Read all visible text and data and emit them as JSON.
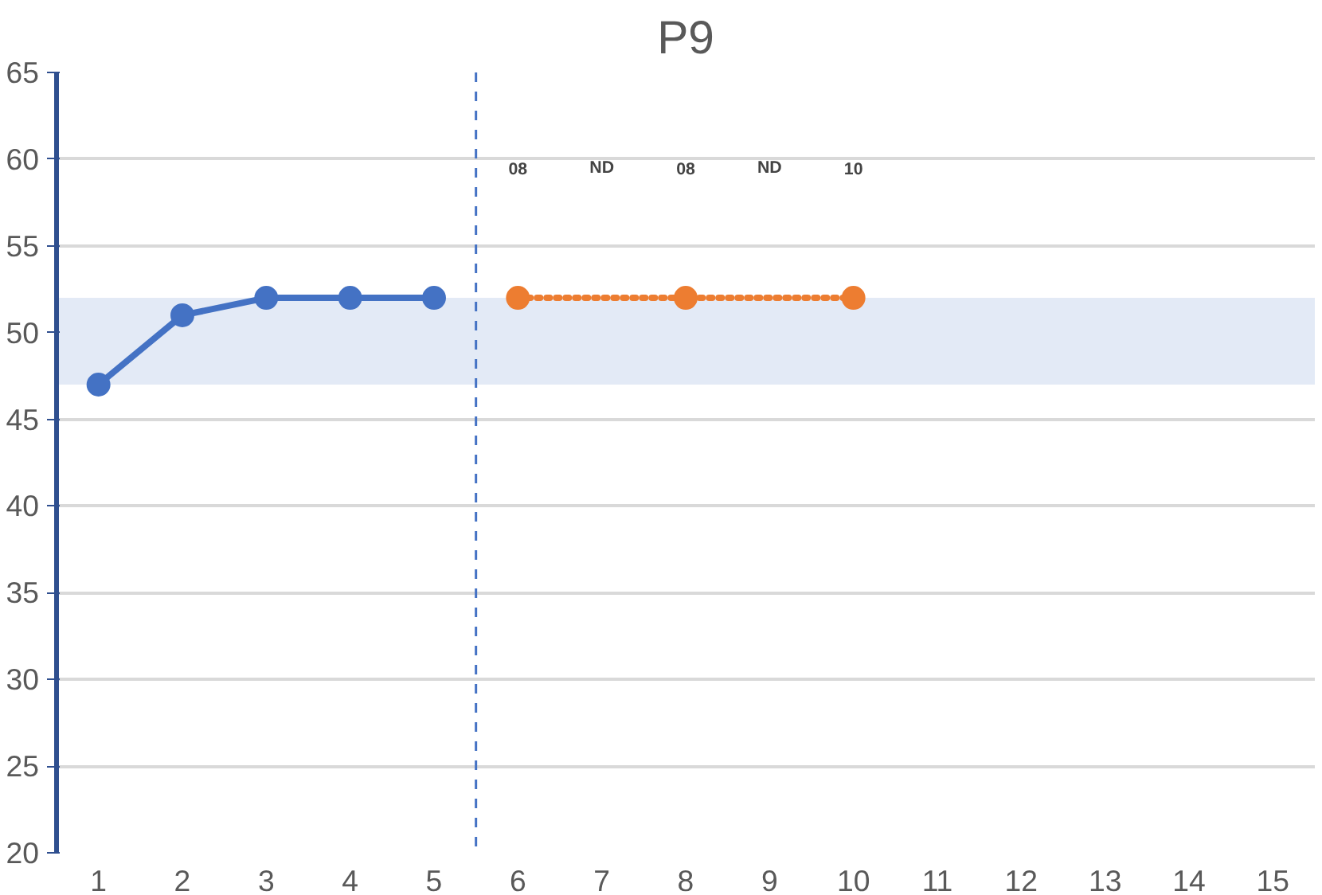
{
  "chart_data": {
    "type": "line",
    "title": "P9",
    "xlim": [
      0.5,
      15.5
    ],
    "xticks": [
      1,
      2,
      3,
      4,
      5,
      6,
      7,
      8,
      9,
      10,
      11,
      12,
      13,
      14,
      15
    ],
    "ylim": [
      20,
      65
    ],
    "yticks": [
      20,
      25,
      30,
      35,
      40,
      45,
      50,
      55,
      60,
      65
    ],
    "series": [
      {
        "color": "#4472c4",
        "x": [
          1,
          2,
          3,
          4,
          5
        ],
        "values": [
          47,
          51,
          52,
          52,
          52
        ],
        "line_style": "solid"
      },
      {
        "color": "#ed7d31",
        "x": [
          6,
          8,
          10
        ],
        "values": [
          52,
          52,
          52
        ],
        "line_style": "dotted"
      }
    ],
    "marker": "circle",
    "grid": "y",
    "bands": [
      {
        "axis": "y",
        "from": 47,
        "to": 52,
        "color": "#e3eaf6"
      }
    ],
    "ref_lines": [
      {
        "axis": "x",
        "value": 5.5,
        "color": "#4472c4",
        "line_style": "dashed"
      }
    ],
    "annotations": [
      "08",
      "ND",
      "08",
      "ND",
      "10"
    ]
  }
}
